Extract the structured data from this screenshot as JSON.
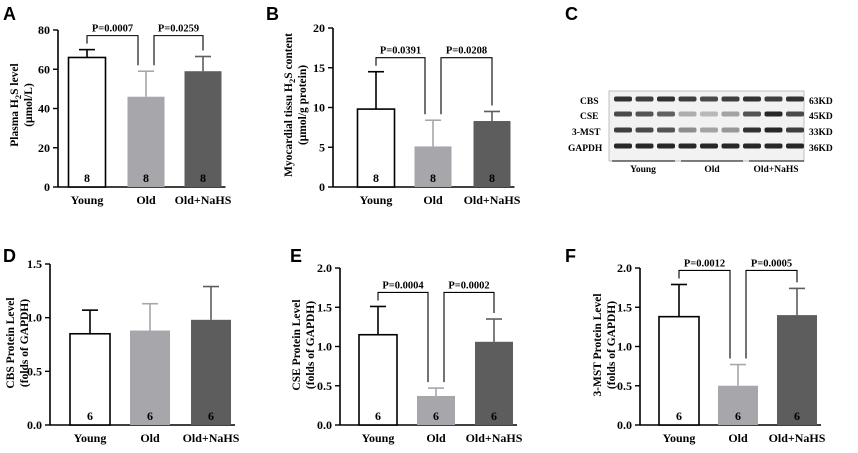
{
  "panels": {
    "A": "A",
    "B": "B",
    "C": "C",
    "D": "D",
    "E": "E",
    "F": "F"
  },
  "blot": {
    "proteins": [
      "CBS",
      "CSE",
      "3-MST",
      "GAPDH"
    ],
    "sizes": [
      "63KD",
      "45KD",
      "33KD",
      "36KD"
    ],
    "groups": [
      "Young",
      "Old",
      "Old+NaHS"
    ]
  },
  "colors": {
    "young": "#ffffff",
    "old": "#a6a6ab",
    "old_nahs": "#5d5d5d",
    "axis": "#000000"
  },
  "chart_data": [
    {
      "id": "A",
      "type": "bar",
      "ylabel": "Plasma H2S level (μmol/L)",
      "ylabel_lines": [
        "Plasma H",
        "2",
        "S level",
        "(μmol/L)"
      ],
      "categories": [
        "Young",
        "Old",
        "Old+NaHS"
      ],
      "values": [
        66,
        46,
        59
      ],
      "errors": [
        4,
        13,
        7.5
      ],
      "n": [
        "8",
        "8",
        "8"
      ],
      "ylim": [
        0,
        80
      ],
      "ticks": [
        0,
        20,
        40,
        60,
        80
      ],
      "tick_labels": [
        "0",
        "20",
        "40",
        "60",
        "80"
      ],
      "comparisons": [
        {
          "from": 0,
          "to": 1,
          "label": "P=0.0007"
        },
        {
          "from": 1,
          "to": 2,
          "label": "P=0.0259"
        }
      ]
    },
    {
      "id": "B",
      "type": "bar",
      "ylabel": "Myocardial tissu H2S content (μmol/g protein)",
      "ylabel_lines": [
        "Myocardial tissu H",
        "2",
        "S content",
        "(μmol/g protein)"
      ],
      "categories": [
        "Young",
        "Old",
        "Old+NaHS"
      ],
      "values": [
        9.8,
        5.1,
        8.3
      ],
      "errors": [
        4.7,
        3.3,
        1.2
      ],
      "n": [
        "8",
        "8",
        "8"
      ],
      "ylim": [
        0,
        20
      ],
      "ticks": [
        0,
        5,
        10,
        15,
        20
      ],
      "tick_labels": [
        "0",
        "5",
        "10",
        "15",
        "20"
      ],
      "comparisons": [
        {
          "from": 0,
          "to": 1,
          "label": "P=0.0391"
        },
        {
          "from": 1,
          "to": 2,
          "label": "P=0.0208"
        }
      ]
    },
    {
      "id": "D",
      "type": "bar",
      "ylabel": "CBS Protein Level (folds of GAPDH)",
      "ylabel_lines": [
        "CBS Protein Level",
        "(folds of GAPDH)"
      ],
      "categories": [
        "Young",
        "Old",
        "Old+NaHS"
      ],
      "values": [
        0.85,
        0.88,
        0.98
      ],
      "errors": [
        0.22,
        0.25,
        0.31
      ],
      "n": [
        "6",
        "6",
        "6"
      ],
      "ylim": [
        0,
        1.5
      ],
      "ticks": [
        0,
        0.5,
        1.0,
        1.5
      ],
      "tick_labels": [
        "0.0",
        "0.5",
        "1.0",
        "1.5"
      ],
      "comparisons": []
    },
    {
      "id": "E",
      "type": "bar",
      "ylabel": "CSE Protein Level (folds of GAPDH)",
      "ylabel_lines": [
        "CSE Protein Level",
        "(folds of GAPDH)"
      ],
      "categories": [
        "Young",
        "Old",
        "Old+NaHS"
      ],
      "values": [
        1.15,
        0.37,
        1.06
      ],
      "errors": [
        0.36,
        0.1,
        0.29
      ],
      "n": [
        "6",
        "6",
        "6"
      ],
      "ylim": [
        0,
        2.0
      ],
      "ticks": [
        0,
        0.5,
        1.0,
        1.5,
        2.0
      ],
      "tick_labels": [
        "0.0",
        "0.5",
        "1.0",
        "1.5",
        "2.0"
      ],
      "comparisons": [
        {
          "from": 0,
          "to": 1,
          "label": "P=0.0004"
        },
        {
          "from": 1,
          "to": 2,
          "label": "P=0.0002"
        }
      ]
    },
    {
      "id": "F",
      "type": "bar",
      "ylabel": "3-MST Protein Level (folds of GAPDH)",
      "ylabel_lines": [
        "3-MST Protein Level",
        "(folds of GAPDH)"
      ],
      "categories": [
        "Young",
        "Old",
        "Old+NaHS"
      ],
      "values": [
        1.38,
        0.5,
        1.4
      ],
      "errors": [
        0.41,
        0.27,
        0.34
      ],
      "n": [
        "6",
        "6",
        "6"
      ],
      "ylim": [
        0,
        2.0
      ],
      "ticks": [
        0,
        0.5,
        1.0,
        1.5,
        2.0
      ],
      "tick_labels": [
        "0.0",
        "0.5",
        "1.0",
        "1.5",
        "2.0"
      ],
      "comparisons": [
        {
          "from": 0,
          "to": 1,
          "label": "P=0.0012"
        },
        {
          "from": 1,
          "to": 2,
          "label": "P=0.0005"
        }
      ]
    }
  ]
}
